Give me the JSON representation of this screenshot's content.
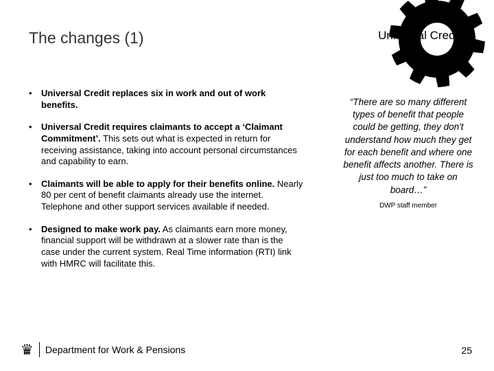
{
  "title": "The changes (1)",
  "headerLabel": "Universal Credit",
  "gear": {
    "fill": "#000000",
    "teeth": 10,
    "outerR": 70,
    "toothDepth": 14,
    "innerR": 24
  },
  "bullets": [
    {
      "bold": "Universal Credit replaces six in work and out of work benefits.",
      "rest": ""
    },
    {
      "bold": "Universal Credit requires claimants to accept a ‘Claimant Commitment’.",
      "rest": " This sets out what is expected in return for receiving assistance, taking into account personal circumstances and capability to earn."
    },
    {
      "bold": "Claimants will be able to apply for their benefits online.",
      "rest": " Nearly 80 per cent of benefit claimants already use the internet. Telephone and other support services available if needed."
    },
    {
      "bold": "Designed to make work pay.",
      "rest": " As claimants earn more money, financial support will be withdrawn at a slower rate than is the case under the current system. Real Time information (RTI) link with HMRC will facilitate this."
    }
  ],
  "quote": "“There are so many different types of benefit that people could be getting, they don't understand how much they get for each benefit and where one benefit affects another. There is just too much to take on board…”",
  "attribution": "DWP staff member",
  "department": "Department for Work & Pensions",
  "pageNumber": "25",
  "colors": {
    "text": "#000000",
    "title": "#333333",
    "background": "#ffffff"
  }
}
